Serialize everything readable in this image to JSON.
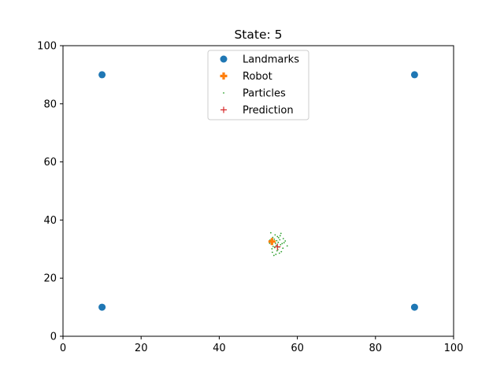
{
  "chart_data": {
    "type": "scatter",
    "title": "State: 5",
    "xlabel": "",
    "ylabel": "",
    "xlim": [
      0,
      100
    ],
    "ylim": [
      0,
      100
    ],
    "xticks": [
      "0",
      "20",
      "40",
      "60",
      "80",
      "100"
    ],
    "yticks": [
      "0",
      "20",
      "40",
      "60",
      "80",
      "100"
    ],
    "grid": false,
    "legend_position": "top-center",
    "series": [
      {
        "name": "Landmarks",
        "marker": "circle",
        "color": "#1f77b4",
        "points": [
          [
            10,
            90
          ],
          [
            90,
            90
          ],
          [
            10,
            10
          ],
          [
            90,
            10
          ]
        ]
      },
      {
        "name": "Robot",
        "marker": "plus-filled",
        "color": "#ff7f0e",
        "points": [
          [
            53.5,
            32.6
          ]
        ]
      },
      {
        "name": "Particles",
        "marker": "point",
        "color": "#2ca02c",
        "points": [
          [
            53.2,
            35.6
          ],
          [
            55.8,
            35.4
          ],
          [
            54.3,
            34.9
          ],
          [
            54.9,
            34.3
          ],
          [
            53.7,
            34.0
          ],
          [
            55.2,
            33.9
          ],
          [
            56.4,
            33.6
          ],
          [
            54.1,
            33.4
          ],
          [
            55.5,
            33.2
          ],
          [
            53.0,
            33.1
          ],
          [
            54.7,
            32.9
          ],
          [
            56.9,
            32.8
          ],
          [
            53.9,
            32.5
          ],
          [
            55.1,
            32.3
          ],
          [
            54.4,
            32.0
          ],
          [
            56.1,
            31.9
          ],
          [
            53.3,
            31.7
          ],
          [
            55.7,
            31.5
          ],
          [
            54.6,
            31.3
          ],
          [
            57.4,
            31.1
          ],
          [
            53.8,
            30.9
          ],
          [
            55.3,
            30.7
          ],
          [
            54.2,
            30.5
          ],
          [
            56.3,
            30.3
          ],
          [
            53.5,
            30.1
          ],
          [
            55.0,
            29.8
          ],
          [
            54.8,
            29.4
          ],
          [
            55.9,
            29.1
          ],
          [
            53.6,
            28.9
          ],
          [
            55.4,
            28.6
          ],
          [
            54.5,
            28.2
          ],
          [
            54.0,
            27.8
          ],
          [
            56.6,
            32.2
          ],
          [
            52.9,
            32.0
          ],
          [
            55.6,
            34.6
          ]
        ]
      },
      {
        "name": "Prediction",
        "marker": "plus",
        "color": "#d62728",
        "points": [
          [
            54.9,
            30.8
          ]
        ]
      }
    ]
  }
}
